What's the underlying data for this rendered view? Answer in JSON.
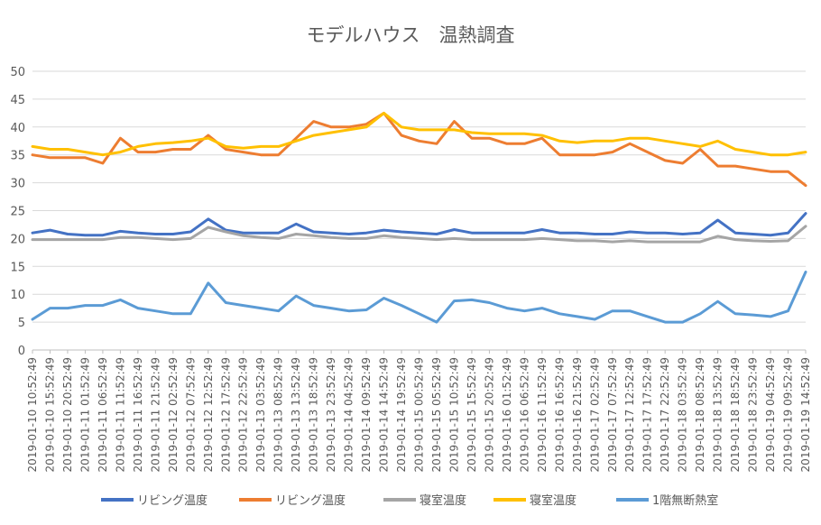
{
  "chart_data": {
    "type": "line",
    "title": "モデルハウス　温熱調査",
    "xlabel": "",
    "ylabel": "",
    "ylim": [
      0,
      50
    ],
    "yticks": [
      0,
      5,
      10,
      15,
      20,
      25,
      30,
      35,
      40,
      45,
      50
    ],
    "grid": true,
    "legend_position": "bottom",
    "x": [
      "2019-01-10 10:52:49",
      "2019-01-10 15:52:49",
      "2019-01-10 20:52:49",
      "2019-01-11 01:52:49",
      "2019-01-11 06:52:49",
      "2019-01-11 11:52:49",
      "2019-01-11 16:52:49",
      "2019-01-11 21:52:49",
      "2019-01-12 02:52:49",
      "2019-01-12 07:52:49",
      "2019-01-12 12:52:49",
      "2019-01-12 17:52:49",
      "2019-01-12 22:52:49",
      "2019-01-13 03:52:49",
      "2019-01-13 08:52:49",
      "2019-01-13 13:52:49",
      "2019-01-13 18:52:49",
      "2019-01-13 23:52:49",
      "2019-01-14 04:52:49",
      "2019-01-14 09:52:49",
      "2019-01-14 14:52:49",
      "2019-01-14 19:52:49",
      "2019-01-15 00:52:49",
      "2019-01-15 05:52:49",
      "2019-01-15 10:52:49",
      "2019-01-15 15:52:49",
      "2019-01-15 20:52:49",
      "2019-01-16 01:52:49",
      "2019-01-16 06:52:49",
      "2019-01-16 11:52:49",
      "2019-01-16 16:52:49",
      "2019-01-16 21:52:49",
      "2019-01-17 02:52:49",
      "2019-01-17 07:52:49",
      "2019-01-17 12:52:49",
      "2019-01-17 17:52:49",
      "2019-01-17 22:52:49",
      "2019-01-18 03:52:49",
      "2019-01-18 08:52:49",
      "2019-01-18 13:52:49",
      "2019-01-18 18:52:49",
      "2019-01-18 23:52:49",
      "2019-01-19 04:52:49",
      "2019-01-19 09:52:49",
      "2019-01-19 14:52:49"
    ],
    "series": [
      {
        "name": "リビング温度",
        "color": "#4472C4",
        "values": [
          21.0,
          21.5,
          20.8,
          20.6,
          20.6,
          21.3,
          21.0,
          20.8,
          20.8,
          21.2,
          23.5,
          21.5,
          21.0,
          21.0,
          21.0,
          22.6,
          21.2,
          21.0,
          20.8,
          21.0,
          21.5,
          21.2,
          21.0,
          20.8,
          21.6,
          21.0,
          21.0,
          21.0,
          21.0,
          21.6,
          21.0,
          21.0,
          20.8,
          20.8,
          21.2,
          21.0,
          21.0,
          20.8,
          21.0,
          23.3,
          21.0,
          20.8,
          20.6,
          21.0,
          24.5
        ]
      },
      {
        "name": "リビング温度",
        "color": "#ED7D31",
        "values": [
          35.0,
          34.5,
          34.5,
          34.5,
          33.5,
          38.0,
          35.5,
          35.5,
          36.0,
          36.0,
          38.5,
          36.0,
          35.5,
          35.0,
          35.0,
          38.0,
          41.0,
          40.0,
          40.0,
          40.5,
          42.5,
          38.5,
          37.5,
          37.0,
          41.0,
          38.0,
          38.0,
          37.0,
          37.0,
          38.0,
          35.0,
          35.0,
          35.0,
          35.5,
          37.0,
          35.5,
          34.0,
          33.5,
          36.0,
          33.0,
          33.0,
          32.5,
          32.0,
          32.0,
          29.5
        ]
      },
      {
        "name": "寝室温度",
        "color": "#A5A5A5",
        "values": [
          19.8,
          19.8,
          19.8,
          19.8,
          19.8,
          20.2,
          20.2,
          20.0,
          19.8,
          20.0,
          22.0,
          21.2,
          20.5,
          20.2,
          20.0,
          20.8,
          20.5,
          20.2,
          20.0,
          20.0,
          20.5,
          20.2,
          20.0,
          19.8,
          20.0,
          19.8,
          19.8,
          19.8,
          19.8,
          20.0,
          19.8,
          19.6,
          19.6,
          19.4,
          19.6,
          19.4,
          19.4,
          19.4,
          19.4,
          20.4,
          19.8,
          19.6,
          19.5,
          19.6,
          22.2
        ]
      },
      {
        "name": "寝室温度",
        "color": "#FFC000",
        "values": [
          36.5,
          36.0,
          36.0,
          35.5,
          35.0,
          35.5,
          36.5,
          37.0,
          37.2,
          37.5,
          38.0,
          36.5,
          36.2,
          36.5,
          36.5,
          37.5,
          38.5,
          39.0,
          39.5,
          40.0,
          42.5,
          40.0,
          39.5,
          39.5,
          39.5,
          39.0,
          38.8,
          38.8,
          38.8,
          38.5,
          37.5,
          37.2,
          37.5,
          37.5,
          38.0,
          38.0,
          37.5,
          37.0,
          36.5,
          37.5,
          36.0,
          35.5,
          35.0,
          35.0,
          35.5
        ]
      },
      {
        "name": "1階無断熱室",
        "color": "#5B9BD5",
        "values": [
          5.5,
          7.5,
          7.5,
          8.0,
          8.0,
          9.0,
          7.5,
          7.0,
          6.5,
          6.5,
          12.0,
          8.5,
          8.0,
          7.5,
          7.0,
          9.7,
          8.0,
          7.5,
          7.0,
          7.2,
          9.3,
          8.0,
          6.5,
          5.0,
          8.8,
          9.0,
          8.5,
          7.5,
          7.0,
          7.5,
          6.5,
          6.0,
          5.5,
          7.0,
          7.0,
          6.0,
          5.0,
          5.0,
          6.5,
          8.7,
          6.5,
          6.3,
          6.0,
          7.0,
          14.0
        ]
      }
    ]
  }
}
